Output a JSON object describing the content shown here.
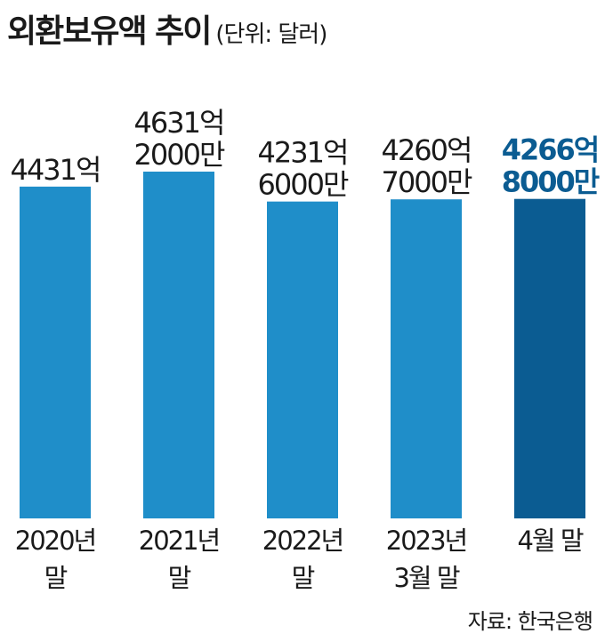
{
  "title": "외환보유액 추이",
  "unit_note": "(단위: 달러)",
  "source": "자료: 한국은행",
  "colors": {
    "bar": "#1f8ec9",
    "highlight_bar": "#0b5c92",
    "highlight_text": "#0b5c92",
    "text": "#1a1a1a"
  },
  "chart_data": {
    "type": "bar",
    "categories": [
      [
        "2020년",
        "말"
      ],
      [
        "2021년",
        "말"
      ],
      [
        "2022년",
        "말"
      ],
      [
        "2023년",
        "3월 말"
      ],
      [
        "4월 말"
      ]
    ],
    "values": [
      4431,
      4631.2,
      4231.6,
      4260.7,
      4266.8
    ],
    "value_unit": "억 달러",
    "data_labels": [
      [
        "4431억"
      ],
      [
        "4631억",
        "2000만"
      ],
      [
        "4231억",
        "6000만"
      ],
      [
        "4260억",
        "7000만"
      ],
      [
        "4266억",
        "8000만"
      ]
    ],
    "highlight_index": 4,
    "title": "외환보유액 추이",
    "xlabel": "",
    "ylabel": "",
    "ylim": [
      0,
      4631.2
    ],
    "grid": false,
    "legend": "none"
  }
}
